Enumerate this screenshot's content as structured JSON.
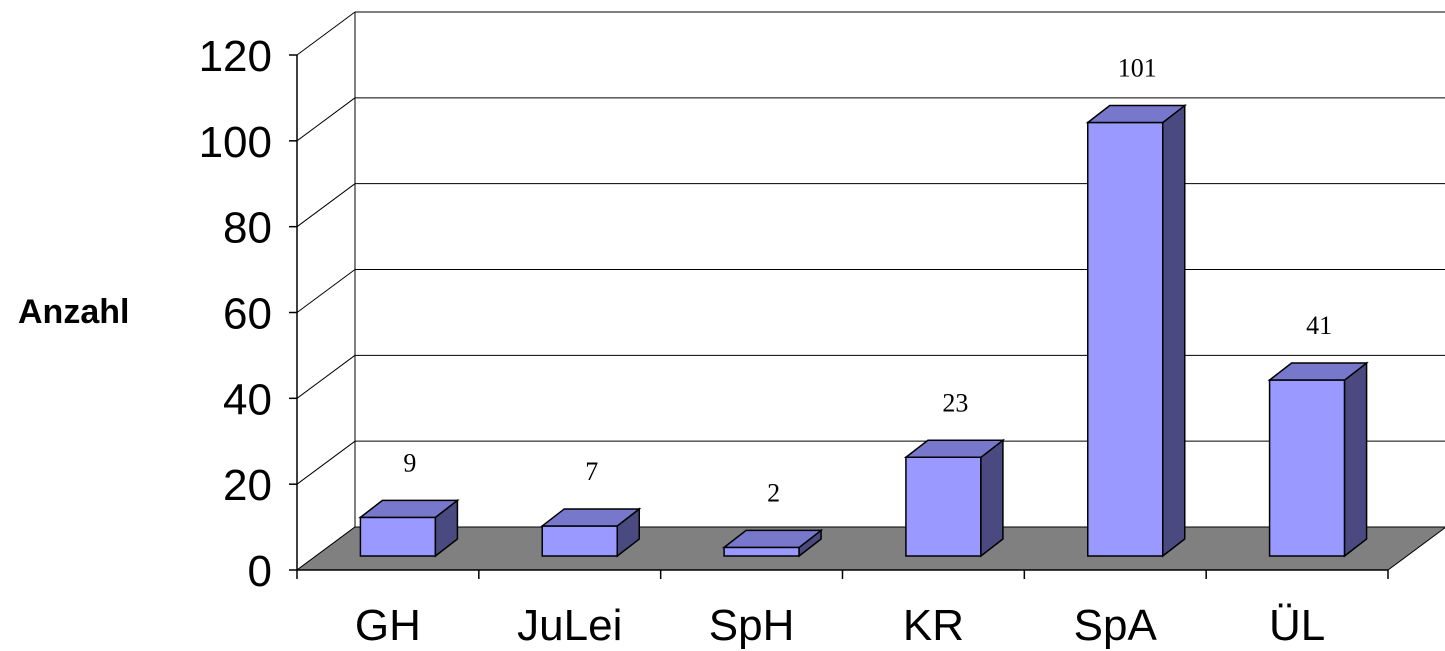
{
  "chart_data": {
    "type": "bar",
    "title": "",
    "xlabel": "",
    "ylabel": "Anzahl",
    "categories": [
      "GH",
      "JuLei",
      "SpH",
      "KR",
      "SpA",
      "ÜL"
    ],
    "values": [
      9,
      7,
      2,
      23,
      101,
      41
    ],
    "ylim": [
      0,
      120
    ],
    "yticks": [
      0,
      20,
      40,
      60,
      80,
      100,
      120
    ],
    "grid": true,
    "legend": "none",
    "style": "3d",
    "colors": {
      "bar_front": "#9999ff",
      "bar_top": "#7777cc",
      "bar_side": "#4a4a80",
      "floor": "#808080",
      "outline": "#000000"
    }
  }
}
